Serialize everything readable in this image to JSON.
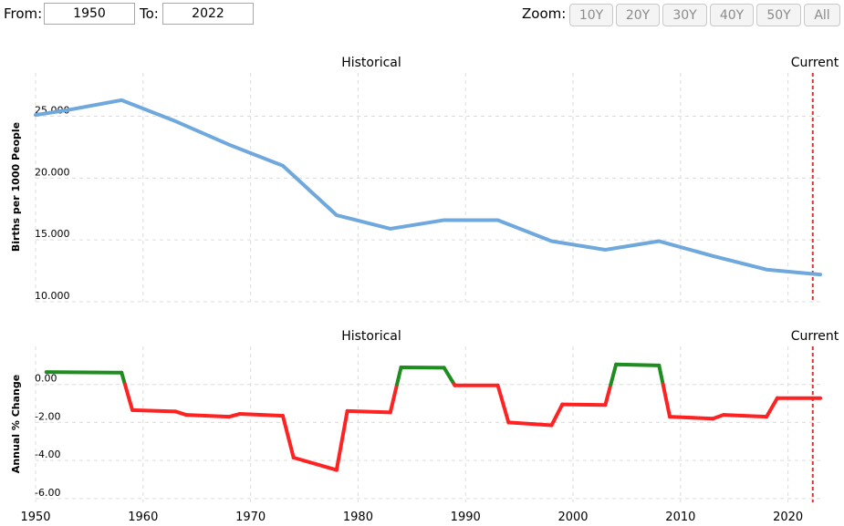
{
  "toolbar": {
    "from_label": "From:",
    "from_value": "1950",
    "to_label": "To:",
    "to_value": "2022",
    "zoom_label": "Zoom:",
    "zoom_buttons": [
      "10Y",
      "20Y",
      "30Y",
      "40Y",
      "50Y",
      "All"
    ]
  },
  "colors": {
    "main_line": "#6fa8dc",
    "increase": "#1e8c1e",
    "decrease": "#ff2222",
    "current_line": "#e03030",
    "grid": "#dcdcdc"
  },
  "chart_data": [
    {
      "type": "line",
      "band_label": "Historical",
      "current_label": "Current",
      "ylabel": "Births per 1000 People",
      "xlim": [
        1950,
        2023
      ],
      "ylim": [
        10,
        28.5
      ],
      "yticks": [
        10,
        15,
        20,
        25
      ],
      "ytick_labels": [
        "10.000",
        "15.000",
        "20.000",
        "25.000"
      ],
      "current_x": 2022.3,
      "x": [
        1950,
        1953,
        1958,
        1963,
        1968,
        1973,
        1978,
        1983,
        1988,
        1993,
        1998,
        2003,
        2008,
        2013,
        2018,
        2023
      ],
      "y": [
        25.1,
        25.5,
        26.3,
        24.6,
        22.7,
        21.0,
        17.0,
        15.9,
        16.6,
        16.6,
        14.9,
        14.2,
        14.9,
        13.7,
        12.6,
        12.2
      ]
    },
    {
      "type": "line",
      "band_label": "Historical",
      "current_label": "Current",
      "ylabel": "Annual % Change",
      "xlim": [
        1950,
        2023
      ],
      "ylim": [
        -6.2,
        2.0
      ],
      "yticks": [
        -6,
        -4,
        -2,
        0
      ],
      "ytick_labels": [
        "-6.00",
        "-4.00",
        "-2.00",
        "0.00"
      ],
      "xticks": [
        1950,
        1960,
        1970,
        1980,
        1990,
        2000,
        2010,
        2020
      ],
      "xtick_labels": [
        "1950",
        "1960",
        "1970",
        "1980",
        "1990",
        "2000",
        "2010",
        "2020"
      ],
      "current_x": 2022.3,
      "x": [
        1951,
        1958,
        1959,
        1963,
        1964,
        1968,
        1969,
        1973,
        1974,
        1978,
        1979,
        1983,
        1984,
        1988,
        1989,
        1993,
        1994,
        1998,
        1999,
        2003,
        2004,
        2008,
        2009,
        2013,
        2014,
        2018,
        2019,
        2023
      ],
      "y": [
        0.65,
        0.62,
        -1.35,
        -1.42,
        -1.6,
        -1.7,
        -1.55,
        -1.65,
        -3.85,
        -4.5,
        -1.4,
        -1.47,
        0.9,
        0.88,
        -0.05,
        -0.05,
        -2.0,
        -2.15,
        -1.05,
        -1.08,
        1.05,
        1.0,
        -1.7,
        -1.8,
        -1.6,
        -1.7,
        -0.72,
        -0.72
      ]
    }
  ]
}
